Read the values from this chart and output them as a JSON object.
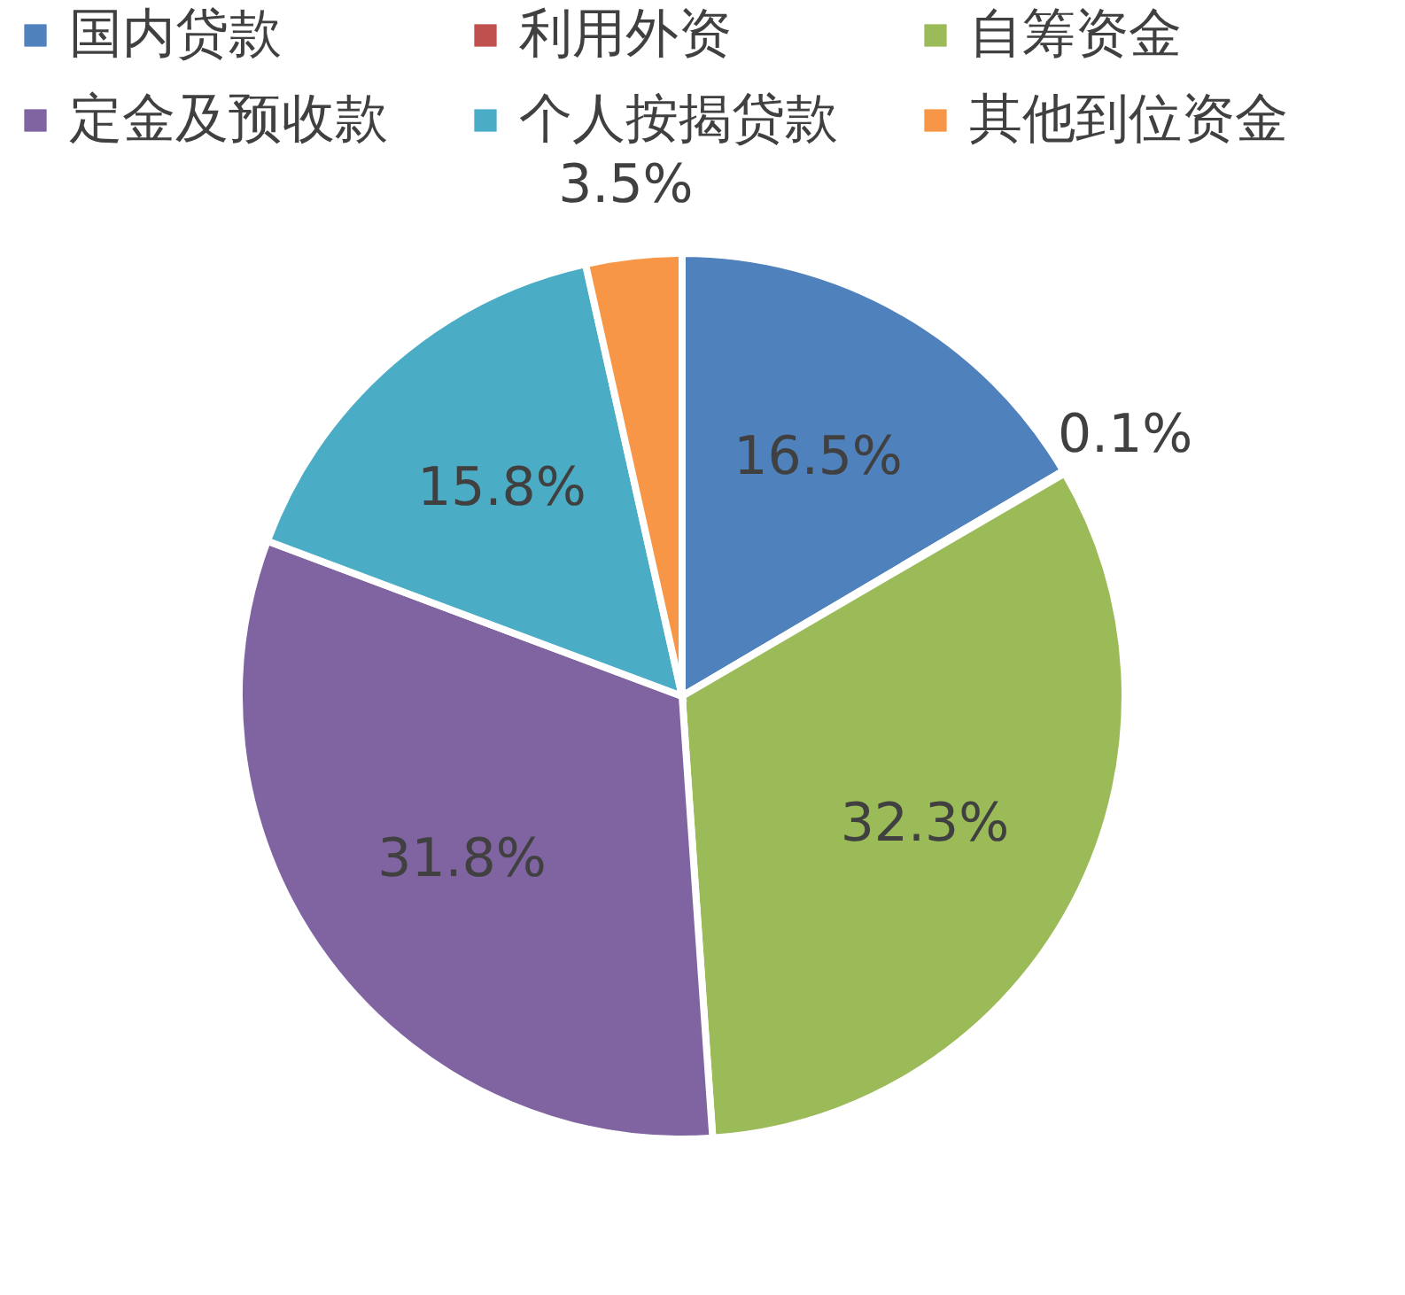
{
  "chart_data": {
    "type": "pie",
    "categories": [
      "国内贷款",
      "利用外资",
      "自筹资金",
      "定金及预收款",
      "个人按揭贷款",
      "其他到位资金"
    ],
    "values": [
      16.5,
      0.1,
      32.3,
      31.8,
      15.8,
      3.5
    ],
    "value_labels": [
      "16.5%",
      "0.1%",
      "32.3%",
      "31.8%",
      "15.8%",
      "3.5%"
    ],
    "colors": [
      "#4f81bd",
      "#c0504d",
      "#9bbb59",
      "#8064a2",
      "#4bacc6",
      "#f79646"
    ],
    "legend": "top"
  }
}
